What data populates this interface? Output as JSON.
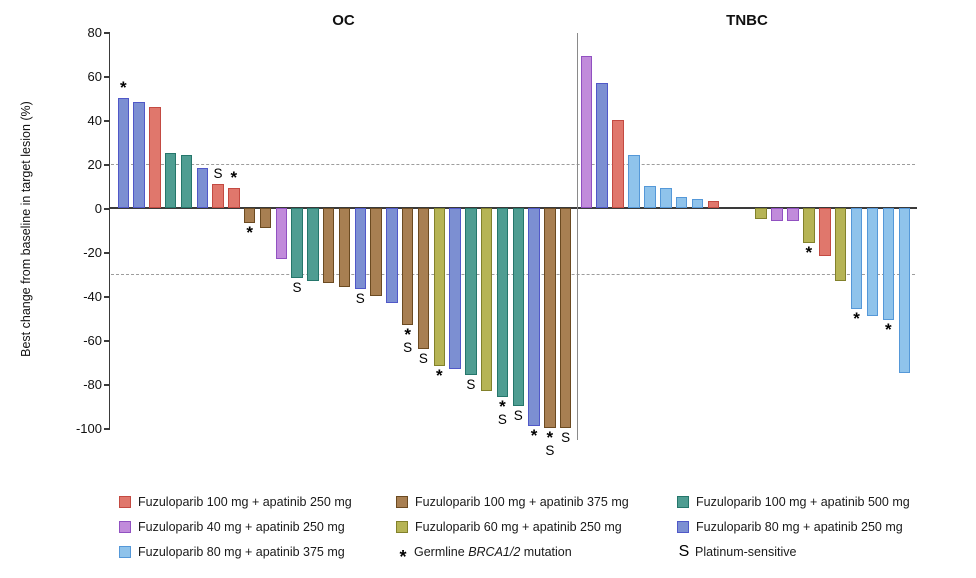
{
  "chart_data": {
    "type": "bar",
    "subtype": "waterfall",
    "ylabel": "Best change from baseline in target lesion (%)",
    "ylim": [
      -100,
      80
    ],
    "y_ticks": [
      80,
      60,
      40,
      20,
      0,
      -20,
      -40,
      -60,
      -80,
      -100
    ],
    "reference_lines": [
      20,
      -30
    ],
    "grid": "dashed reference lines only",
    "legend_position": "bottom",
    "marker_meanings": {
      "*": "Germline BRCA1/2 mutation",
      "S": "Platinum-sensitive"
    },
    "colors": {
      "F100A250": {
        "fill": "#E0776C",
        "border": "#C34A42"
      },
      "F100A375": {
        "fill": "#A87F52",
        "border": "#6B4A21"
      },
      "F100A500": {
        "fill": "#4F9D92",
        "border": "#25766B"
      },
      "F40A250": {
        "fill": "#C18BDB",
        "border": "#9151C1"
      },
      "F60A250": {
        "fill": "#B6B455",
        "border": "#82812B"
      },
      "F80A250": {
        "fill": "#7C8FD2",
        "border": "#5058C8"
      },
      "F80A375": {
        "fill": "#8FC3EB",
        "border": "#5598D8"
      }
    },
    "groups": [
      {
        "name": "OC",
        "bars": [
          {
            "value": 50,
            "color": "F80A250",
            "marks": "*"
          },
          {
            "value": 48,
            "color": "F80A250"
          },
          {
            "value": 46,
            "color": "F100A250"
          },
          {
            "value": 25,
            "color": "F100A500"
          },
          {
            "value": 24,
            "color": "F100A500"
          },
          {
            "value": 18,
            "color": "F80A250"
          },
          {
            "value": 11,
            "color": "F100A250",
            "marks": "S"
          },
          {
            "value": 9,
            "color": "F100A250",
            "marks": "*"
          },
          {
            "value": -7,
            "color": "F100A375",
            "marks": "*"
          },
          {
            "value": -9,
            "color": "F100A375"
          },
          {
            "value": -23,
            "color": "F40A250"
          },
          {
            "value": -32,
            "color": "F100A500",
            "marks": "S"
          },
          {
            "value": -33,
            "color": "F100A500"
          },
          {
            "value": -34,
            "color": "F100A375"
          },
          {
            "value": -36,
            "color": "F100A375"
          },
          {
            "value": -37,
            "color": "F80A250",
            "marks": "S"
          },
          {
            "value": -40,
            "color": "F100A375"
          },
          {
            "value": -43,
            "color": "F80A250"
          },
          {
            "value": -53,
            "color": "F100A375",
            "marks": "*S"
          },
          {
            "value": -64,
            "color": "F100A375",
            "marks": "S"
          },
          {
            "value": -72,
            "color": "F60A250",
            "marks": "*"
          },
          {
            "value": -73,
            "color": "F80A250"
          },
          {
            "value": -76,
            "color": "F100A500",
            "marks": "S"
          },
          {
            "value": -83,
            "color": "F60A250"
          },
          {
            "value": -86,
            "color": "F100A500",
            "marks": "*S"
          },
          {
            "value": -90,
            "color": "F100A500",
            "marks": "S"
          },
          {
            "value": -99,
            "color": "F80A250",
            "marks": "*"
          },
          {
            "value": -100,
            "color": "F100A375",
            "marks": "*S"
          },
          {
            "value": -100,
            "color": "F100A375",
            "marks": "S"
          }
        ]
      },
      {
        "name": "TNBC",
        "bars": [
          {
            "value": 69,
            "color": "F40A250"
          },
          {
            "value": 57,
            "color": "F80A250"
          },
          {
            "value": 40,
            "color": "F100A250"
          },
          {
            "value": 24,
            "color": "F80A375"
          },
          {
            "value": 10,
            "color": "F80A375"
          },
          {
            "value": 9,
            "color": "F80A375"
          },
          {
            "value": 5,
            "color": "F80A375"
          },
          {
            "value": 4,
            "color": "F80A375"
          },
          {
            "value": 3,
            "color": "F100A250"
          },
          {
            "value": -5,
            "color": "F60A250"
          },
          {
            "value": -6,
            "color": "F40A250"
          },
          {
            "value": -6,
            "color": "F40A250"
          },
          {
            "value": -16,
            "color": "F60A250",
            "marks": "*"
          },
          {
            "value": -22,
            "color": "F100A250"
          },
          {
            "value": -33,
            "color": "F60A250"
          },
          {
            "value": -46,
            "color": "F80A375",
            "marks": "*"
          },
          {
            "value": -49,
            "color": "F80A375"
          },
          {
            "value": -51,
            "color": "F80A375",
            "marks": "*"
          },
          {
            "value": -75,
            "color": "F80A375"
          }
        ]
      }
    ],
    "legend": {
      "col1": [
        {
          "key": "F100A250",
          "label": "Fuzuloparib 100 mg + apatinib 250 mg"
        },
        {
          "key": "F40A250",
          "label": "Fuzuloparib 40 mg + apatinib 250 mg"
        },
        {
          "key": "F80A375",
          "label": "Fuzuloparib 80 mg + apatinib 375 mg"
        }
      ],
      "col2": [
        {
          "key": "F100A375",
          "label": "Fuzuloparib 100 mg + apatinib 375 mg"
        },
        {
          "key": "F60A250",
          "label": "Fuzuloparib 60 mg + apatinib 250 mg"
        },
        {
          "symbol": "*",
          "label_pre": "Germline ",
          "label_italic": "BRCA1/2",
          "label_post": " mutation"
        }
      ],
      "col3": [
        {
          "key": "F100A500",
          "label": "Fuzuloparib 100 mg + apatinib 500 mg"
        },
        {
          "key": "F80A250",
          "label": "Fuzuloparib 80 mg + apatinib 250 mg"
        },
        {
          "symbol": "S",
          "label": "Platinum-sensitive"
        }
      ]
    }
  }
}
